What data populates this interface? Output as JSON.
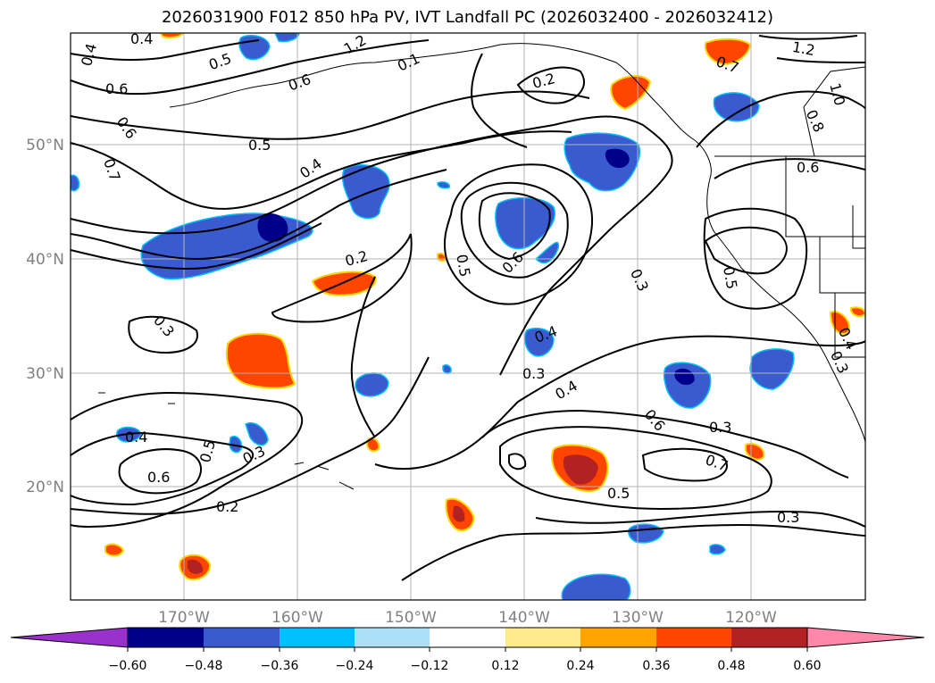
{
  "title": "2026031900 F012 850 hPa PV, IVT Landfall PC (2026032400 - 2026032412)",
  "map": {
    "lat_labels": [
      "50°N",
      "40°N",
      "30°N",
      "20°N"
    ],
    "lon_labels": [
      "170°W",
      "160°W",
      "150°W",
      "140°W",
      "130°W",
      "120°W"
    ],
    "contour_labels": [
      {
        "text": "0.4"
      },
      {
        "text": "0.4"
      },
      {
        "text": "0.6"
      },
      {
        "text": "0.5"
      },
      {
        "text": "0.6"
      },
      {
        "text": "0.6"
      },
      {
        "text": "0.7"
      },
      {
        "text": "0.5"
      },
      {
        "text": "0.4"
      },
      {
        "text": "0.2"
      },
      {
        "text": "0.2"
      },
      {
        "text": "0.5"
      },
      {
        "text": "0.6"
      },
      {
        "text": "0.3"
      },
      {
        "text": "0.5"
      },
      {
        "text": "0.3"
      },
      {
        "text": "0.4"
      },
      {
        "text": "0.3"
      },
      {
        "text": "0.4"
      },
      {
        "text": "0.6"
      },
      {
        "text": "0.3"
      },
      {
        "text": "0.7"
      },
      {
        "text": "0.5"
      },
      {
        "text": "0.3"
      },
      {
        "text": "0.4"
      },
      {
        "text": "0.6"
      },
      {
        "text": "0.5"
      },
      {
        "text": "0.3"
      },
      {
        "text": "0.2"
      },
      {
        "text": "0.4"
      },
      {
        "text": "0.3"
      },
      {
        "text": "1.2"
      },
      {
        "text": "1.0"
      },
      {
        "text": "0.8"
      },
      {
        "text": "0.7"
      },
      {
        "text": "0.6"
      },
      {
        "text": "0.1"
      },
      {
        "text": "1.2"
      }
    ]
  },
  "colorbar": {
    "tick_labels": [
      "−0.60",
      "−0.48",
      "−0.36",
      "−0.24",
      "−0.12",
      "0.12",
      "0.24",
      "0.36",
      "0.48",
      "0.60"
    ],
    "colors": [
      "#9932CC",
      "#00008B",
      "#3A5BD0",
      "#00BFFF",
      "#ADE0F8",
      "#FFFFFF",
      "#FFEB8C",
      "#FFA500",
      "#FF4500",
      "#B22222",
      "#FF88AA"
    ]
  }
}
